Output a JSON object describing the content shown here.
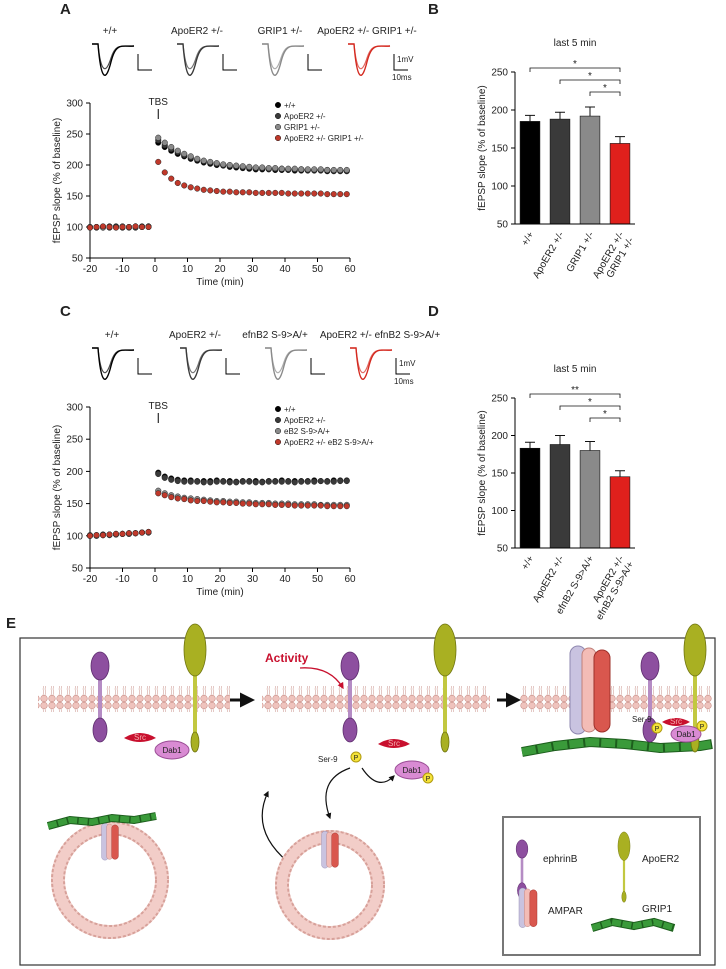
{
  "chart_data": [
    {
      "panel": "A",
      "type": "line",
      "traces": [
        {
          "label": "+/+",
          "color": "#000000"
        },
        {
          "label": "ApoER2 +/-",
          "color": "#3a3a3a"
        },
        {
          "label": "GRIP1 +/-",
          "color": "#8a8a8a"
        },
        {
          "label": "ApoER2 +/- GRIP1 +/-",
          "color": "#d42a20"
        }
      ],
      "scale": {
        "amplitude": "1mV",
        "time": "10ms"
      },
      "annotation": "TBS",
      "x": [
        -20,
        -18,
        -16,
        -14,
        -12,
        -10,
        -8,
        -6,
        -4,
        -2,
        1,
        3,
        5,
        7,
        9,
        11,
        13,
        15,
        17,
        19,
        21,
        23,
        25,
        27,
        29,
        31,
        33,
        35,
        37,
        39,
        41,
        43,
        45,
        47,
        49,
        51,
        53,
        55,
        57,
        59
      ],
      "series": [
        {
          "name": "+/+",
          "color": "#000000",
          "values": [
            100,
            99,
            100,
            101,
            100,
            99,
            100,
            101,
            100,
            101,
            236,
            229,
            223,
            218,
            214,
            210,
            207,
            204,
            202,
            200,
            199,
            197,
            196,
            195,
            194,
            193,
            193,
            193,
            192,
            192,
            192,
            191,
            191,
            191,
            191,
            191,
            190,
            190,
            190,
            190
          ]
        },
        {
          "name": "ApoER2 +/-",
          "color": "#3a3a3a",
          "values": [
            99,
            100,
            100,
            99,
            101,
            100,
            100,
            99,
            101,
            100,
            240,
            232,
            226,
            221,
            216,
            212,
            209,
            206,
            204,
            202,
            200,
            199,
            198,
            197,
            196,
            195,
            195,
            194,
            194,
            194,
            193,
            193,
            193,
            192,
            192,
            192,
            192,
            191,
            191,
            191
          ]
        },
        {
          "name": "GRIP1 +/-",
          "color": "#8a8a8a",
          "values": [
            100,
            100,
            99,
            100,
            100,
            101,
            99,
            100,
            100,
            101,
            244,
            236,
            229,
            223,
            218,
            214,
            210,
            207,
            205,
            203,
            201,
            200,
            199,
            198,
            197,
            196,
            196,
            195,
            195,
            194,
            194,
            194,
            193,
            193,
            193,
            193,
            192,
            192,
            192,
            192
          ]
        },
        {
          "name": "ApoER2 +/- GRIP1 +/-",
          "color": "#c0392b",
          "values": [
            99,
            100,
            101,
            100,
            99,
            100,
            100,
            101,
            100,
            100,
            205,
            188,
            178,
            171,
            167,
            164,
            162,
            160,
            159,
            158,
            157,
            157,
            156,
            156,
            156,
            155,
            155,
            155,
            155,
            155,
            154,
            154,
            154,
            154,
            154,
            154,
            153,
            153,
            153,
            153
          ]
        }
      ],
      "xlim": [
        -20,
        60
      ],
      "xticks": [
        -20,
        -10,
        0,
        10,
        20,
        30,
        40,
        50,
        60
      ],
      "ylim": [
        50,
        300
      ],
      "yticks": [
        50,
        100,
        150,
        200,
        250,
        300
      ],
      "xlabel": "Time (min)",
      "ylabel": "fEPSP slope (% of baseline)",
      "legend": "upper right"
    },
    {
      "panel": "B",
      "type": "bar",
      "title": "last 5 min",
      "categories": [
        "+/+",
        "ApoER2 +/-",
        "GRIP1 +/-",
        "ApoER2 +/-\nGRIP1 +/-"
      ],
      "values": [
        185,
        188,
        192,
        156
      ],
      "errors": [
        8,
        9,
        12,
        9
      ],
      "colors": [
        "#000000",
        "#3a3a3a",
        "#8a8a8a",
        "#e0201c"
      ],
      "ylim": [
        50,
        250
      ],
      "yticks": [
        50,
        100,
        150,
        200,
        250
      ],
      "ylabel": "fEPSP slope (% of baseline)",
      "significance": [
        "*",
        "*",
        "*"
      ]
    },
    {
      "panel": "C",
      "type": "line",
      "traces": [
        {
          "label": "+/+",
          "color": "#000000"
        },
        {
          "label": "ApoER2 +/-",
          "color": "#3a3a3a"
        },
        {
          "label": "efnB2 S-9>A/+",
          "color": "#8a8a8a"
        },
        {
          "label": "ApoER2 +/- efnB2 S-9>A/+",
          "color": "#d42a20"
        }
      ],
      "scale": {
        "amplitude": "1mV",
        "time": "10ms"
      },
      "annotation": "TBS",
      "x": [
        -20,
        -18,
        -16,
        -14,
        -12,
        -10,
        -8,
        -6,
        -4,
        -2,
        1,
        3,
        5,
        7,
        9,
        11,
        13,
        15,
        17,
        19,
        21,
        23,
        25,
        27,
        29,
        31,
        33,
        35,
        37,
        39,
        41,
        43,
        45,
        47,
        49,
        51,
        53,
        55,
        57,
        59
      ],
      "series": [
        {
          "name": "+/+",
          "color": "#000000",
          "values": [
            100,
            101,
            101,
            102,
            102,
            103,
            104,
            104,
            105,
            106,
            198,
            192,
            189,
            187,
            186,
            186,
            185,
            185,
            185,
            186,
            185,
            185,
            184,
            185,
            185,
            185,
            184,
            185,
            185,
            186,
            185,
            185,
            185,
            185,
            186,
            185,
            185,
            186,
            186,
            186
          ]
        },
        {
          "name": "ApoER2 +/-",
          "color": "#3a3a3a",
          "values": [
            101,
            100,
            102,
            102,
            103,
            103,
            103,
            104,
            105,
            105,
            196,
            190,
            187,
            185,
            184,
            184,
            184,
            183,
            183,
            184,
            184,
            183,
            183,
            184,
            184,
            183,
            183,
            184,
            184,
            184,
            184,
            183,
            184,
            184,
            184,
            185,
            184,
            184,
            185,
            185
          ]
        },
        {
          "name": "eB2 S-9>A/+",
          "color": "#8a8a8a",
          "values": [
            100,
            100,
            101,
            101,
            102,
            103,
            103,
            104,
            105,
            105,
            170,
            166,
            163,
            161,
            159,
            158,
            157,
            156,
            155,
            154,
            154,
            153,
            153,
            152,
            152,
            151,
            151,
            151,
            150,
            150,
            150,
            149,
            149,
            149,
            149,
            148,
            148,
            148,
            148,
            148
          ]
        },
        {
          "name": "ApoER2 +/- eB2 S-9>A/+",
          "color": "#c0392b",
          "values": [
            100,
            101,
            101,
            102,
            103,
            103,
            104,
            104,
            105,
            106,
            166,
            163,
            160,
            158,
            157,
            155,
            154,
            154,
            153,
            152,
            152,
            151,
            151,
            150,
            150,
            149,
            149,
            149,
            148,
            148,
            148,
            147,
            147,
            147,
            147,
            147,
            146,
            146,
            146,
            146
          ]
        }
      ],
      "xlim": [
        -20,
        60
      ],
      "xticks": [
        -20,
        -10,
        0,
        10,
        20,
        30,
        40,
        50,
        60
      ],
      "ylim": [
        50,
        300
      ],
      "yticks": [
        50,
        100,
        150,
        200,
        250,
        300
      ],
      "xlabel": "Time (min)",
      "ylabel": "fEPSP slope (% of baseline)",
      "legend": "upper right"
    },
    {
      "panel": "D",
      "type": "bar",
      "title": "last 5 min",
      "categories": [
        "+/+",
        "ApoER2 +/-",
        "efnB2 S-9>A/+",
        "ApoER2 +/-\nefnB2 S-9>A/+"
      ],
      "values": [
        183,
        188,
        180,
        145
      ],
      "errors": [
        8,
        12,
        12,
        8
      ],
      "colors": [
        "#000000",
        "#3a3a3a",
        "#8a8a8a",
        "#e0201c"
      ],
      "ylim": [
        50,
        250
      ],
      "yticks": [
        50,
        100,
        150,
        200,
        250
      ],
      "ylabel": "fEPSP slope (% of baseline)",
      "significance": [
        "**",
        "*",
        "*"
      ]
    }
  ],
  "diagram": {
    "panel": "E",
    "activity": "Activity",
    "src": "Src",
    "dab1": "Dab1",
    "ser9": "Ser-9",
    "phospho": "P",
    "legend": [
      "ephrinB",
      "ApoER2",
      "AMPAR",
      "GRIP1"
    ]
  }
}
